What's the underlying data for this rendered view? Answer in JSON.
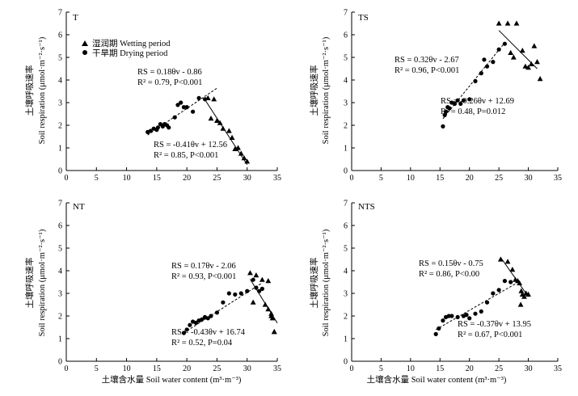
{
  "figure": {
    "ylabel_cn": "土壤呼吸速率",
    "ylabel_en": "Soil respiration (μmol·m⁻²·s⁻¹)",
    "xlabel": "土壤含水量 Soil water content (m³·m⁻³)",
    "legend": {
      "wetting": "湿润期 Wetting period",
      "drying": "干旱期 Drying period"
    }
  },
  "chart_data": [
    {
      "type": "scatter",
      "panel": "T",
      "xlim": [
        0,
        35
      ],
      "ylim": [
        0,
        7
      ],
      "xticks": [
        0,
        5,
        10,
        15,
        20,
        25,
        30,
        35
      ],
      "yticks": [
        0,
        1,
        2,
        3,
        4,
        5,
        6,
        7
      ],
      "series": [
        {
          "name": "湿润期 Wetting period",
          "marker": "triangle",
          "x": [
            23.5,
            24.5,
            24,
            25,
            25.5,
            26,
            27,
            27.5,
            28,
            28.5,
            29,
            29.5,
            30
          ],
          "y": [
            3.2,
            3.15,
            2.3,
            2.2,
            2.1,
            1.85,
            1.75,
            1.45,
            0.95,
            1.0,
            0.75,
            0.55,
            0.4
          ]
        },
        {
          "name": "干旱期 Drying period",
          "marker": "circle",
          "x": [
            13.5,
            14,
            14.5,
            15,
            15.2,
            15.6,
            16,
            16.3,
            16.7,
            17,
            18,
            18.5,
            19,
            19.5,
            20,
            21,
            22,
            23
          ],
          "y": [
            1.7,
            1.75,
            1.85,
            1.8,
            1.9,
            2.05,
            1.95,
            2.05,
            2.0,
            1.9,
            2.35,
            2.9,
            3.0,
            2.8,
            2.8,
            2.6,
            3.2,
            3.15
          ]
        }
      ],
      "fits": [
        {
          "series": "干旱期 Drying period",
          "style": "dashed",
          "slope": 0.18,
          "intercept": -0.86,
          "x_range": [
            13.5,
            25
          ]
        },
        {
          "series": "湿润期 Wetting period",
          "style": "solid",
          "slope": -0.41,
          "intercept": 12.56,
          "x_range": [
            23,
            30
          ]
        }
      ],
      "annotations": [
        {
          "line1": "RS = 0.18θv - 0.86",
          "line2": "R² = 0.79, P<0.001"
        },
        {
          "line1": "RS = -0.41θv + 12.56",
          "line2": "R² = 0.85, P<0.001"
        }
      ]
    },
    {
      "type": "scatter",
      "panel": "TS",
      "xlim": [
        0,
        35
      ],
      "ylim": [
        0,
        7
      ],
      "xticks": [
        0,
        5,
        10,
        15,
        20,
        25,
        30,
        35
      ],
      "yticks": [
        0,
        1,
        2,
        3,
        4,
        5,
        6,
        7
      ],
      "series": [
        {
          "name": "湿润期 Wetting period",
          "marker": "triangle",
          "x": [
            25,
            26.5,
            27,
            28,
            29,
            27.5,
            29.5,
            30,
            30.5,
            31,
            31.5,
            32
          ],
          "y": [
            6.5,
            6.5,
            5.2,
            6.5,
            5.3,
            5.0,
            4.6,
            4.55,
            4.7,
            5.5,
            4.8,
            4.05
          ]
        },
        {
          "name": "干旱期 Drying period",
          "marker": "circle",
          "x": [
            15.5,
            15.8,
            16,
            16.3,
            16.6,
            17,
            17.5,
            18,
            18.5,
            19,
            20,
            21,
            22,
            22.5,
            23,
            24,
            25,
            26
          ],
          "y": [
            1.95,
            2.45,
            2.6,
            2.8,
            2.75,
            3.0,
            2.95,
            3.1,
            2.95,
            3.1,
            3.15,
            3.95,
            4.3,
            4.9,
            4.6,
            4.8,
            5.35,
            5.6
          ]
        }
      ],
      "fits": [
        {
          "series": "干旱期 Drying period",
          "style": "dashed",
          "slope": 0.32,
          "intercept": -2.67,
          "x_range": [
            15.5,
            26
          ]
        },
        {
          "series": "湿润期 Wetting period",
          "style": "solid",
          "slope": -0.26,
          "intercept": 12.69,
          "x_range": [
            25,
            31.5
          ]
        }
      ],
      "annotations": [
        {
          "line1": "RS = 0.32θv - 2.67",
          "line2": "R² = 0.96, P<0.001"
        },
        {
          "line1": "RS = -0.26θv + 12.69",
          "line2": "R² = 0.48, P=0.012"
        }
      ]
    },
    {
      "type": "scatter",
      "panel": "NT",
      "xlim": [
        0,
        35
      ],
      "ylim": [
        0,
        7
      ],
      "xticks": [
        0,
        5,
        10,
        15,
        20,
        25,
        30,
        35
      ],
      "yticks": [
        0,
        1,
        2,
        3,
        4,
        5,
        6,
        7
      ],
      "series": [
        {
          "name": "湿润期 Wetting period",
          "marker": "triangle",
          "x": [
            30.5,
            31.5,
            32.5,
            33.5,
            33,
            33.5,
            34,
            34,
            34.2,
            34.5,
            31,
            34.5
          ],
          "y": [
            3.9,
            3.8,
            3.6,
            3.55,
            2.5,
            2.3,
            2.1,
            2.0,
            1.9,
            1.3,
            2.6,
            1.3
          ]
        },
        {
          "name": "干旱期 Drying period",
          "marker": "circle",
          "x": [
            19.5,
            20,
            20.5,
            21,
            21.5,
            22,
            22.5,
            23,
            23.5,
            24,
            25,
            26,
            27,
            28,
            29,
            30,
            31,
            31.5,
            32,
            32.5
          ],
          "y": [
            1.25,
            1.4,
            1.6,
            1.75,
            1.7,
            1.8,
            1.85,
            1.95,
            1.9,
            2.0,
            2.15,
            2.6,
            3.0,
            2.95,
            3.0,
            3.1,
            3.6,
            3.25,
            3.1,
            3.2
          ]
        }
      ],
      "fits": [
        {
          "series": "干旱期 Drying period",
          "style": "dashed",
          "slope": 0.17,
          "intercept": -2.06,
          "x_range": [
            19.5,
            32.5
          ]
        },
        {
          "series": "湿润期 Wetting period",
          "style": "solid",
          "slope": -0.43,
          "intercept": 16.74,
          "x_range": [
            30.5,
            35
          ]
        }
      ],
      "annotations": [
        {
          "line1": "RS = 0.17θv - 2.06",
          "line2": "R² = 0.93, P<0.001"
        },
        {
          "line1": "RS = -0.43θv + 16.74",
          "line2": "R² = 0.52, P=0.04"
        }
      ]
    },
    {
      "type": "scatter",
      "panel": "NTS",
      "xlim": [
        0,
        35
      ],
      "ylim": [
        0,
        7
      ],
      "xticks": [
        0,
        5,
        10,
        15,
        20,
        25,
        30,
        35
      ],
      "yticks": [
        0,
        1,
        2,
        3,
        4,
        5,
        6,
        7
      ],
      "series": [
        {
          "name": "湿润期 Wetting period",
          "marker": "triangle",
          "x": [
            25.3,
            26.5,
            27.3,
            27.8,
            28.2,
            28.5,
            28.8,
            29.0,
            29.3,
            29.6,
            30.0,
            28.7
          ],
          "y": [
            4.5,
            4.4,
            4.05,
            3.6,
            3.55,
            3.45,
            3.1,
            2.95,
            2.85,
            3.0,
            2.95,
            2.5
          ]
        },
        {
          "name": "干旱期 Drying period",
          "marker": "circle",
          "x": [
            14.3,
            14.8,
            15.5,
            16,
            16.5,
            17,
            18,
            19,
            19.5,
            20,
            21,
            22,
            23,
            24,
            25,
            26,
            27
          ],
          "y": [
            1.2,
            1.45,
            1.8,
            1.95,
            2.0,
            2.0,
            1.95,
            2.0,
            2.05,
            1.9,
            2.1,
            2.2,
            2.6,
            3.0,
            3.15,
            3.55,
            3.5
          ]
        }
      ],
      "fits": [
        {
          "series": "干旱期 Drying period",
          "style": "dashed",
          "slope": 0.15,
          "intercept": -0.75,
          "x_range": [
            14.3,
            28
          ]
        },
        {
          "series": "湿润期 Wetting period",
          "style": "solid",
          "slope": -0.37,
          "intercept": 13.95,
          "x_range": [
            25.3,
            30
          ]
        }
      ],
      "annotations": [
        {
          "line1": "RS = 0.15θv - 0.75",
          "line2": "R² = 0.86, P<0.00"
        },
        {
          "line1": "RS = -0.37θv + 13.95",
          "line2": "R² = 0.67, P<0.001"
        }
      ]
    }
  ]
}
